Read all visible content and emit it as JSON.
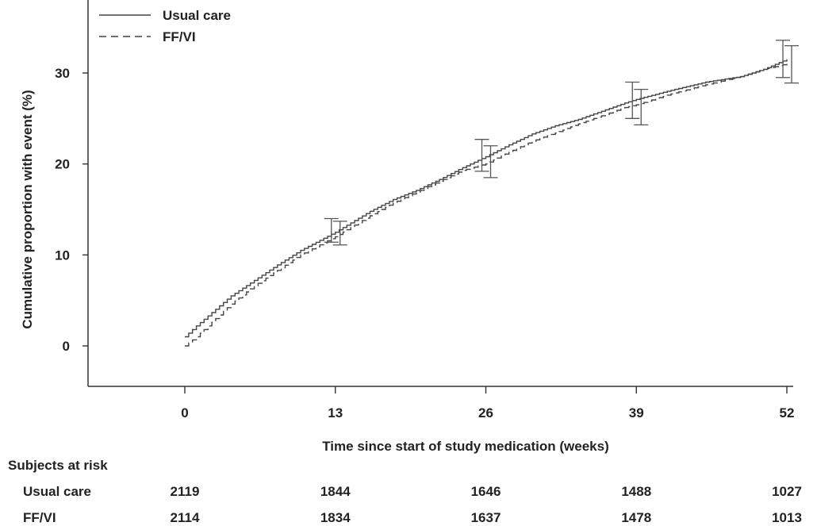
{
  "chart_data": {
    "type": "line",
    "title": "",
    "xlabel": "Time since start of study medication (weeks)",
    "ylabel": "Cumulative proportion with event (%)",
    "x_ticks": [
      0,
      13,
      26,
      39,
      52
    ],
    "y_ticks": [
      0,
      10,
      20,
      30
    ],
    "xlim": [
      0,
      52
    ],
    "ylim": [
      -4,
      37
    ],
    "grid": false,
    "legend_position": "top-left",
    "series": [
      {
        "name": "Usual care",
        "style": "solid",
        "color": "#444444",
        "x": [
          0,
          1,
          2,
          4,
          6,
          8,
          10,
          13,
          16,
          18,
          20,
          22,
          24,
          26,
          28,
          30,
          32,
          34,
          36,
          38,
          39,
          42,
          45,
          48,
          50,
          52
        ],
        "y": [
          1.0,
          2.2,
          3.3,
          5.5,
          7.2,
          8.9,
          10.5,
          12.5,
          14.8,
          16.1,
          17.1,
          18.3,
          19.6,
          20.8,
          22.1,
          23.3,
          24.2,
          24.9,
          25.8,
          26.7,
          27.1,
          28.1,
          29.0,
          29.6,
          30.4,
          31.5
        ]
      },
      {
        "name": "FF/VI",
        "style": "dashed",
        "color": "#444444",
        "x": [
          0,
          1,
          2,
          4,
          6,
          8,
          10,
          13,
          16,
          18,
          20,
          22,
          24,
          26,
          28,
          30,
          32,
          34,
          36,
          38,
          39,
          42,
          45,
          48,
          50,
          52
        ],
        "y": [
          0.0,
          1.0,
          2.2,
          4.6,
          6.6,
          8.3,
          10.0,
          12.0,
          14.3,
          15.7,
          16.9,
          18.1,
          19.3,
          20.0,
          21.3,
          22.5,
          23.4,
          24.4,
          25.3,
          26.2,
          26.5,
          27.7,
          28.7,
          29.6,
          30.4,
          31.0
        ]
      }
    ],
    "error_bars": [
      {
        "series": "Usual care",
        "x": 13,
        "low": 11.4,
        "high": 14.0
      },
      {
        "series": "FF/VI",
        "x": 13,
        "low": 11.1,
        "high": 13.7
      },
      {
        "series": "Usual care",
        "x": 26,
        "low": 19.2,
        "high": 22.7
      },
      {
        "series": "FF/VI",
        "x": 26,
        "low": 18.5,
        "high": 22.0
      },
      {
        "series": "Usual care",
        "x": 39,
        "low": 25.0,
        "high": 29.0
      },
      {
        "series": "FF/VI",
        "x": 39,
        "low": 24.3,
        "high": 28.2
      },
      {
        "series": "Usual care",
        "x": 52,
        "low": 29.5,
        "high": 33.6
      },
      {
        "series": "FF/VI",
        "x": 52,
        "low": 28.9,
        "high": 33.0
      }
    ],
    "risk_table": {
      "title": "Subjects at risk",
      "rows": [
        {
          "label": "Usual care",
          "values": [
            "2119",
            "1844",
            "1646",
            "1488",
            "1027"
          ]
        },
        {
          "label": "FF/VI",
          "values": [
            "2114",
            "1834",
            "1637",
            "1478",
            "1013"
          ]
        }
      ]
    }
  }
}
